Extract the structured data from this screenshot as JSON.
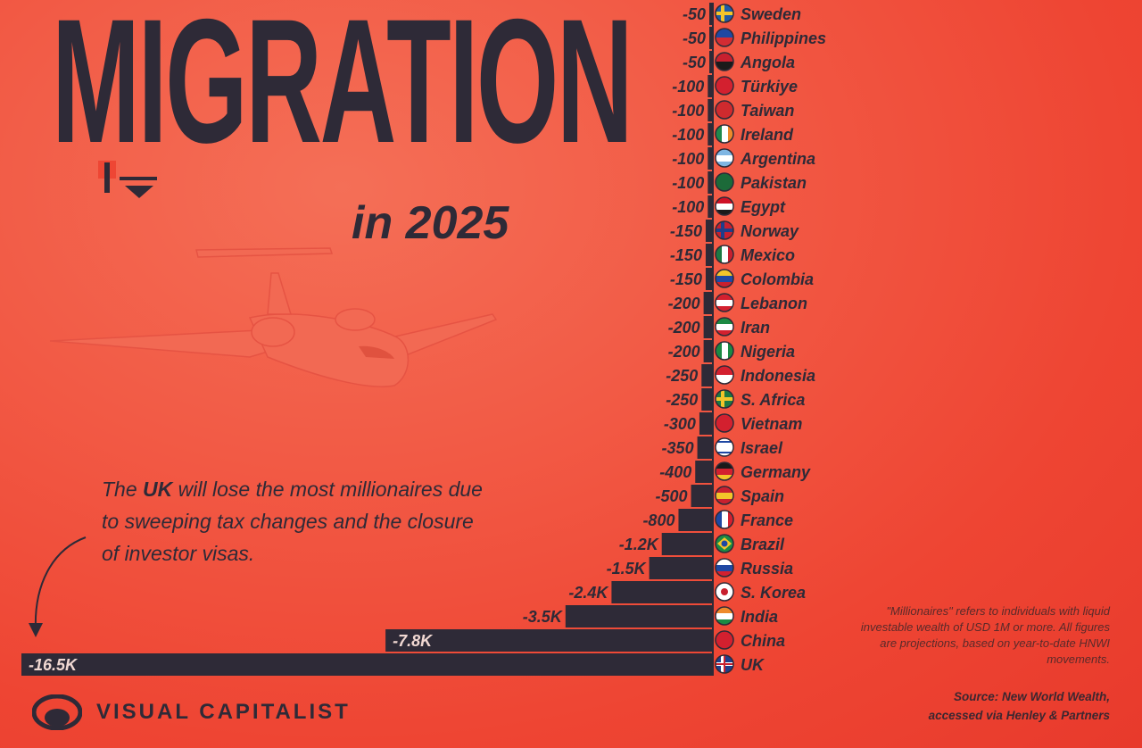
{
  "title": "MIGRATION",
  "subtitle": "in 2025",
  "annotation": {
    "before": "The ",
    "emphasis": "UK",
    "after": " will lose the most millionaires due to sweeping tax changes and the closure of investor visas."
  },
  "footnote": "\"Millionaires\" refers to individuals with liquid investable wealth of USD 1M or more. All figures are projections, based on year-to-date HNWI movements.",
  "source": {
    "line1": "Source: New World Wealth,",
    "line2": "accessed via Henley & Partners"
  },
  "brand": "VISUAL CAPITALIST",
  "colors": {
    "background": "#ee4533",
    "bar": "#2e2a37",
    "text": "#2e2a37"
  },
  "chart_data": {
    "type": "bar",
    "orientation": "horizontal",
    "title": "MIGRATION in 2025",
    "xlim": [
      -16500,
      0
    ],
    "bars": [
      {
        "country": "Sweden",
        "value": -50,
        "label": "-50",
        "flag": "sweden-flag-icon"
      },
      {
        "country": "Philippines",
        "value": -50,
        "label": "-50",
        "flag": "philippines-flag-icon"
      },
      {
        "country": "Angola",
        "value": -50,
        "label": "-50",
        "flag": "angola-flag-icon"
      },
      {
        "country": "Türkiye",
        "value": -100,
        "label": "-100",
        "flag": "turkiye-flag-icon"
      },
      {
        "country": "Taiwan",
        "value": -100,
        "label": "-100",
        "flag": "taiwan-flag-icon"
      },
      {
        "country": "Ireland",
        "value": -100,
        "label": "-100",
        "flag": "ireland-flag-icon"
      },
      {
        "country": "Argentina",
        "value": -100,
        "label": "-100",
        "flag": "argentina-flag-icon"
      },
      {
        "country": "Pakistan",
        "value": -100,
        "label": "-100",
        "flag": "pakistan-flag-icon"
      },
      {
        "country": "Egypt",
        "value": -100,
        "label": "-100",
        "flag": "egypt-flag-icon"
      },
      {
        "country": "Norway",
        "value": -150,
        "label": "-150",
        "flag": "norway-flag-icon"
      },
      {
        "country": "Mexico",
        "value": -150,
        "label": "-150",
        "flag": "mexico-flag-icon"
      },
      {
        "country": "Colombia",
        "value": -150,
        "label": "-150",
        "flag": "colombia-flag-icon"
      },
      {
        "country": "Lebanon",
        "value": -200,
        "label": "-200",
        "flag": "lebanon-flag-icon"
      },
      {
        "country": "Iran",
        "value": -200,
        "label": "-200",
        "flag": "iran-flag-icon"
      },
      {
        "country": "Nigeria",
        "value": -200,
        "label": "-200",
        "flag": "nigeria-flag-icon"
      },
      {
        "country": "Indonesia",
        "value": -250,
        "label": "-250",
        "flag": "indonesia-flag-icon"
      },
      {
        "country": "S. Africa",
        "value": -250,
        "label": "-250",
        "flag": "south-africa-flag-icon"
      },
      {
        "country": "Vietnam",
        "value": -300,
        "label": "-300",
        "flag": "vietnam-flag-icon"
      },
      {
        "country": "Israel",
        "value": -350,
        "label": "-350",
        "flag": "israel-flag-icon"
      },
      {
        "country": "Germany",
        "value": -400,
        "label": "-400",
        "flag": "germany-flag-icon"
      },
      {
        "country": "Spain",
        "value": -500,
        "label": "-500",
        "flag": "spain-flag-icon"
      },
      {
        "country": "France",
        "value": -800,
        "label": "-800",
        "flag": "france-flag-icon"
      },
      {
        "country": "Brazil",
        "value": -1200,
        "label": "-1.2K",
        "flag": "brazil-flag-icon"
      },
      {
        "country": "Russia",
        "value": -1500,
        "label": "-1.5K",
        "flag": "russia-flag-icon"
      },
      {
        "country": "S. Korea",
        "value": -2400,
        "label": "-2.4K",
        "flag": "south-korea-flag-icon"
      },
      {
        "country": "India",
        "value": -3500,
        "label": "-3.5K",
        "flag": "india-flag-icon"
      },
      {
        "country": "China",
        "value": -7800,
        "label": "-7.8K",
        "flag": "china-flag-icon"
      },
      {
        "country": "UK",
        "value": -16500,
        "label": "-16.5K",
        "flag": "uk-flag-icon"
      }
    ]
  }
}
